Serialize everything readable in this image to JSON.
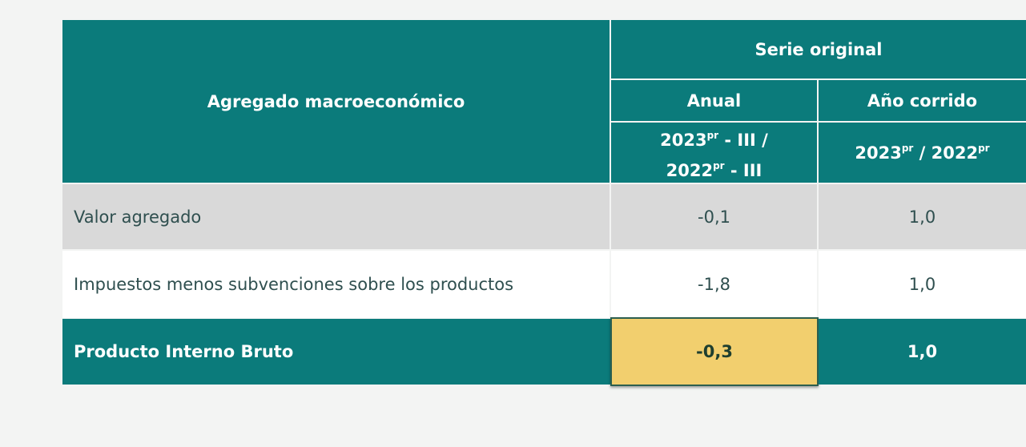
{
  "table": {
    "header": {
      "title": "Agregado macroeconómico",
      "group": "Serie original",
      "columns": [
        "Anual",
        "Año corrido"
      ],
      "periods": [
        [
          "2023",
          "pr",
          " - III /",
          "2022",
          "pr",
          " - III"
        ],
        [
          "2023",
          "pr",
          " / 2022",
          "pr"
        ]
      ]
    },
    "rows": [
      [
        "Valor agregado",
        "-0,1",
        "1,0"
      ],
      [
        "Impuestos menos subvenciones sobre los productos",
        "-1,8",
        "1,0"
      ],
      [
        "Producto Interno Bruto",
        "-0,3",
        "1,0"
      ]
    ]
  }
}
